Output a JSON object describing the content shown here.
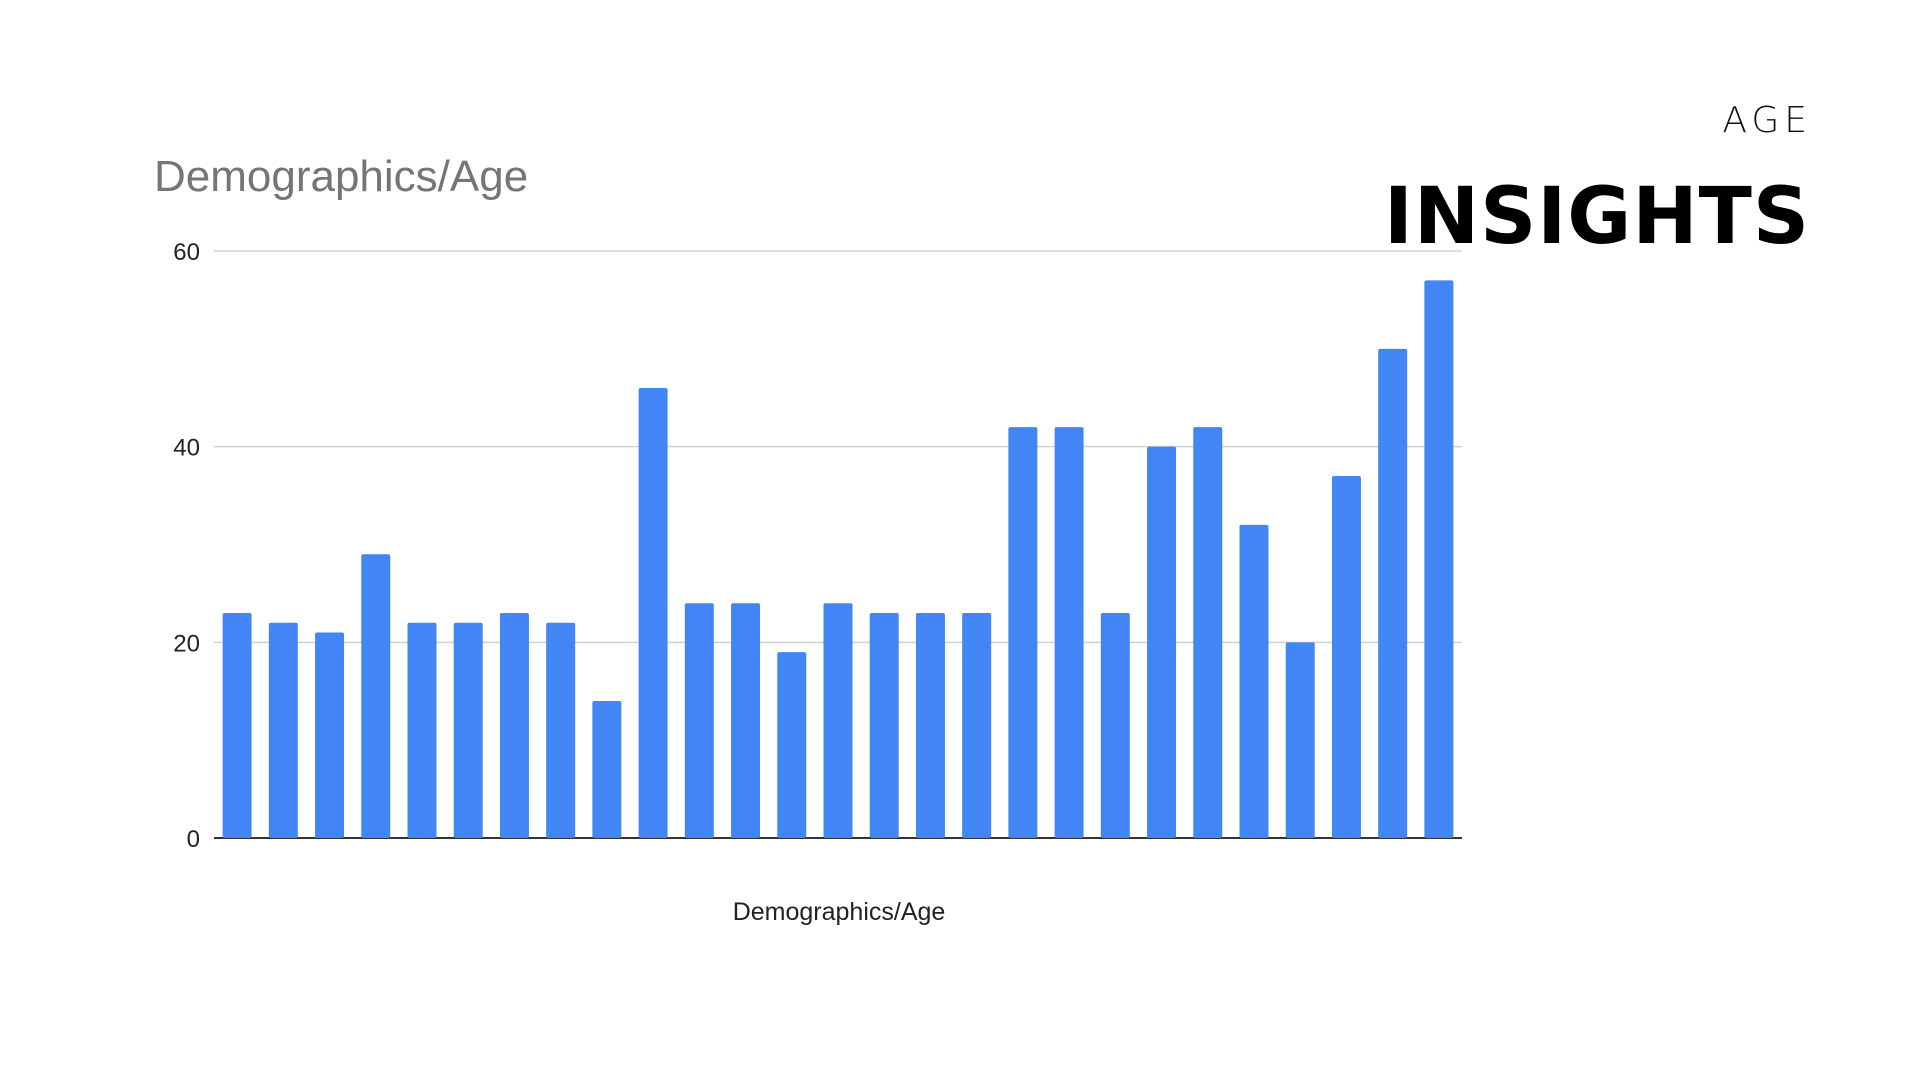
{
  "header": {
    "kicker": "AGE",
    "headline": "INSIGHTS"
  },
  "chart_data": {
    "type": "bar",
    "title": "Demographics/Age",
    "xlabel": "Demographics/Age",
    "ylabel": "",
    "ylim": [
      0,
      60
    ],
    "yticks": [
      "0",
      "20",
      "40",
      "60"
    ],
    "grid": true,
    "bar_color": "#4285F4",
    "values": [
      23,
      22,
      21,
      29,
      22,
      22,
      23,
      22,
      14,
      46,
      24,
      24,
      19,
      24,
      23,
      23,
      23,
      42,
      42,
      23,
      40,
      42,
      32,
      20,
      37,
      50,
      57
    ]
  }
}
